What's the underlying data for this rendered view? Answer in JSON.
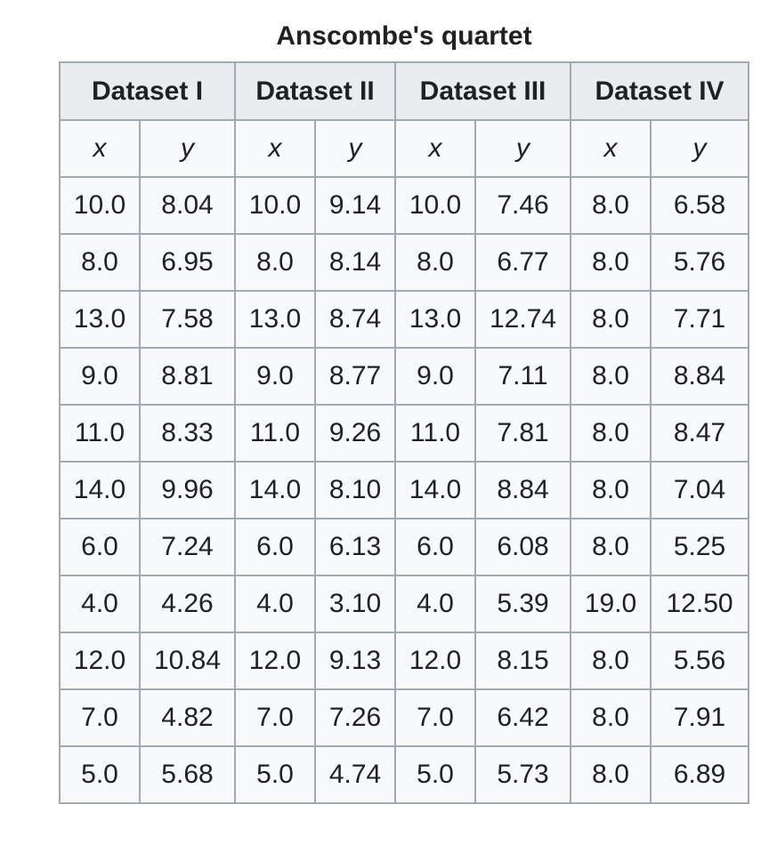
{
  "caption": "Anscombe's quartet",
  "datasets": [
    {
      "name": "Dataset I",
      "x_label": "x",
      "y_label": "y"
    },
    {
      "name": "Dataset II",
      "x_label": "x",
      "y_label": "y"
    },
    {
      "name": "Dataset III",
      "x_label": "x",
      "y_label": "y"
    },
    {
      "name": "Dataset IV",
      "x_label": "x",
      "y_label": "y"
    }
  ],
  "rows": [
    [
      "10.0",
      "8.04",
      "10.0",
      "9.14",
      "10.0",
      "7.46",
      "8.0",
      "6.58"
    ],
    [
      "8.0",
      "6.95",
      "8.0",
      "8.14",
      "8.0",
      "6.77",
      "8.0",
      "5.76"
    ],
    [
      "13.0",
      "7.58",
      "13.0",
      "8.74",
      "13.0",
      "12.74",
      "8.0",
      "7.71"
    ],
    [
      "9.0",
      "8.81",
      "9.0",
      "8.77",
      "9.0",
      "7.11",
      "8.0",
      "8.84"
    ],
    [
      "11.0",
      "8.33",
      "11.0",
      "9.26",
      "11.0",
      "7.81",
      "8.0",
      "8.47"
    ],
    [
      "14.0",
      "9.96",
      "14.0",
      "8.10",
      "14.0",
      "8.84",
      "8.0",
      "7.04"
    ],
    [
      "6.0",
      "7.24",
      "6.0",
      "6.13",
      "6.0",
      "6.08",
      "8.0",
      "5.25"
    ],
    [
      "4.0",
      "4.26",
      "4.0",
      "3.10",
      "4.0",
      "5.39",
      "19.0",
      "12.50"
    ],
    [
      "12.0",
      "10.84",
      "12.0",
      "9.13",
      "12.0",
      "8.15",
      "8.0",
      "5.56"
    ],
    [
      "7.0",
      "4.82",
      "7.0",
      "7.26",
      "7.0",
      "6.42",
      "8.0",
      "7.91"
    ],
    [
      "5.0",
      "5.68",
      "5.0",
      "4.74",
      "5.0",
      "5.73",
      "8.0",
      "6.89"
    ]
  ]
}
